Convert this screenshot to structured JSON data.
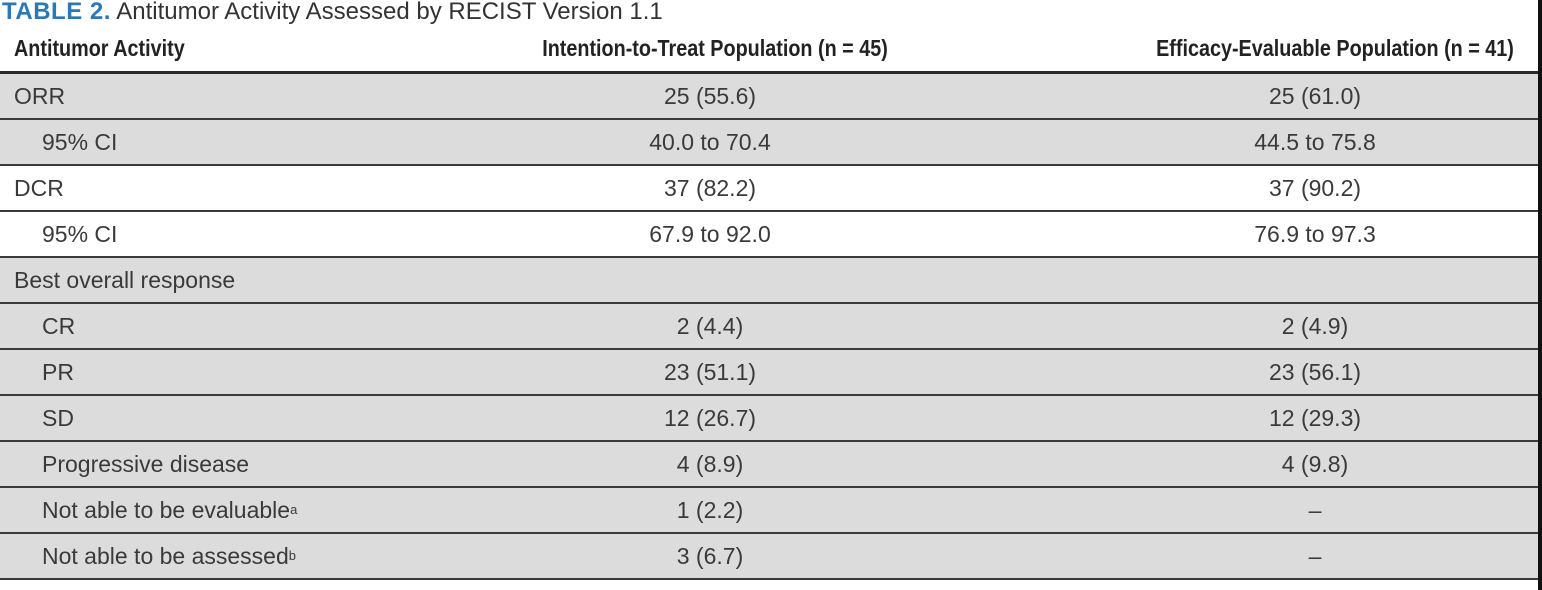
{
  "title": {
    "label": "TABLE 2.",
    "text": "Antitumor Activity Assessed by RECIST Version 1.1"
  },
  "columns": [
    "Antitumor Activity",
    "Intention-to-Treat Population (n = 45)",
    "Efficacy-Evaluable Population (n = 41)"
  ],
  "rows": [
    {
      "label": "ORR",
      "sup": "",
      "itt": "25 (55.6)",
      "ee": "25 (61.0)",
      "indent": false
    },
    {
      "label": "95% CI",
      "sup": "",
      "itt": "40.0 to 70.4",
      "ee": "44.5 to 75.8",
      "indent": true
    },
    {
      "label": "DCR",
      "sup": "",
      "itt": "37 (82.2)",
      "ee": "37 (90.2)",
      "indent": false
    },
    {
      "label": "95% CI",
      "sup": "",
      "itt": "67.9 to 92.0",
      "ee": "76.9 to 97.3",
      "indent": true
    },
    {
      "label": "Best overall response",
      "sup": "",
      "itt": "",
      "ee": "",
      "indent": false
    },
    {
      "label": "CR",
      "sup": "",
      "itt": "2 (4.4)",
      "ee": "2 (4.9)",
      "indent": true
    },
    {
      "label": "PR",
      "sup": "",
      "itt": "23 (51.1)",
      "ee": "23 (56.1)",
      "indent": true
    },
    {
      "label": "SD",
      "sup": "",
      "itt": "12 (26.7)",
      "ee": "12 (29.3)",
      "indent": true
    },
    {
      "label": "Progressive disease",
      "sup": "",
      "itt": "4 (8.9)",
      "ee": "4 (9.8)",
      "indent": true
    },
    {
      "label": "Not able to be evaluable",
      "sup": "a",
      "itt": "1 (2.2)",
      "ee": "–",
      "indent": true
    },
    {
      "label": "Not able to be assessed",
      "sup": "b",
      "itt": "3 (6.7)",
      "ee": "–",
      "indent": true
    }
  ],
  "colors": {
    "title_label": "#2b78b6",
    "row_gray": "#dcdcdc",
    "row_white": "#ffffff"
  }
}
